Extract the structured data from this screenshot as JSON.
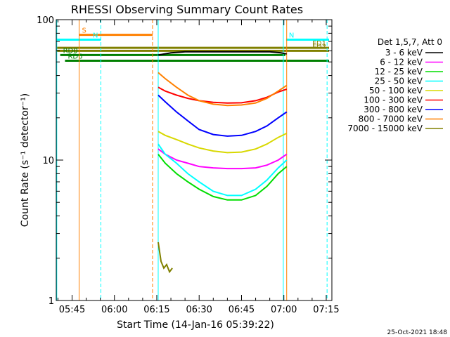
{
  "chart_data": {
    "type": "line",
    "title": "RHESSI Observing Summary Count Rates",
    "xlabel": "Start Time (14-Jan-16 05:39:22)",
    "ylabel": "Count Rate (s⁻¹ detector⁻¹)",
    "footer_timestamp": "25-Oct-2021 18:48",
    "x_unit": "minutes",
    "xlim": [
      339.4,
      437.0
    ],
    "ylim": [
      1,
      100
    ],
    "y_scale": "log",
    "x_ticks": [
      {
        "x": 345,
        "label": "05:45"
      },
      {
        "x": 360,
        "label": "06:00"
      },
      {
        "x": 375,
        "label": "06:15"
      },
      {
        "x": 390,
        "label": "06:30"
      },
      {
        "x": 405,
        "label": "06:45"
      },
      {
        "x": 420,
        "label": "07:00"
      },
      {
        "x": 435,
        "label": "07:15"
      }
    ],
    "y_ticks": [
      {
        "y": 1,
        "label": "1"
      },
      {
        "y": 10,
        "label": "10"
      },
      {
        "y": 100,
        "label": "100"
      }
    ],
    "legend": {
      "position": "right",
      "header": "Det 1,5,7, Att 0",
      "entries": [
        {
          "label": "3 - 6 keV",
          "color": "#000000"
        },
        {
          "label": "6 - 12 keV",
          "color": "#ff00ff"
        },
        {
          "label": "12 - 25 keV",
          "color": "#00dd00"
        },
        {
          "label": "25 - 50 keV",
          "color": "#00ffff"
        },
        {
          "label": "50 - 100 keV",
          "color": "#d8d800"
        },
        {
          "label": "100 - 300 keV",
          "color": "#ff0000"
        },
        {
          "label": "300 - 800 keV",
          "color": "#0000ff"
        },
        {
          "label": "800 - 7000 keV",
          "color": "#ff8000"
        },
        {
          "label": "7000 - 15000 keV",
          "color": "#808000"
        }
      ]
    },
    "flags": [
      {
        "label": "S",
        "color": "#ff8000",
        "y": 78,
        "x_start": 347.5,
        "x_end": 373.5
      },
      {
        "label": "N",
        "color": "#00ffff",
        "y": 72,
        "x_start": 339.4,
        "x_end": 355.2
      },
      {
        "label": "N",
        "color": "#00ffff",
        "y": 72,
        "x_start": 420.8,
        "x_end": 436.0
      },
      {
        "label": "FD1",
        "color": "#808000",
        "y": 63,
        "x_start": 339.4,
        "x_end": 436.0
      },
      {
        "label": "FD2",
        "color": "#808000",
        "y": 60,
        "x_start": 339.4,
        "x_end": 436.0
      },
      {
        "label": "RD0",
        "color": "#008000",
        "y": 56,
        "x_start": 340.8,
        "x_end": 420.5
      },
      {
        "label": "RD6",
        "color": "#008000",
        "y": 51,
        "x_start": 342.5,
        "x_end": 436.0
      }
    ],
    "vlines": [
      {
        "x": 339.6,
        "color": "#00ffff",
        "style": "solid"
      },
      {
        "x": 347.5,
        "color": "#ff8000",
        "style": "solid"
      },
      {
        "x": 355.2,
        "color": "#00ffff",
        "style": "dashed"
      },
      {
        "x": 373.5,
        "color": "#ff8000",
        "style": "dashed"
      },
      {
        "x": 375.5,
        "color": "#00ffff",
        "style": "solid"
      },
      {
        "x": 419.8,
        "color": "#00ffff",
        "style": "solid"
      },
      {
        "x": 421.0,
        "color": "#ff8000",
        "style": "solid"
      },
      {
        "x": 435.3,
        "color": "#00ffff",
        "style": "dashed"
      }
    ],
    "series": [
      {
        "name": "3 - 6 keV",
        "color": "#000000",
        "x": [
          375.5,
          380,
          385,
          390,
          395,
          400,
          405,
          410,
          415,
          419,
          421
        ],
        "y": [
          56,
          58,
          59,
          59,
          59,
          59,
          59,
          59,
          59,
          58,
          57
        ]
      },
      {
        "name": "6 - 12 keV",
        "color": "#ff00ff",
        "x": [
          375.5,
          378,
          382,
          386,
          390,
          395,
          400,
          405,
          410,
          414,
          418,
          421
        ],
        "y": [
          12,
          11,
          10,
          9.5,
          9,
          8.8,
          8.7,
          8.7,
          8.8,
          9.2,
          10,
          11
        ]
      },
      {
        "name": "12 - 25 keV",
        "color": "#00dd00",
        "x": [
          375.5,
          378,
          382,
          386,
          390,
          395,
          400,
          405,
          410,
          414,
          418,
          421
        ],
        "y": [
          11,
          9.5,
          8,
          7,
          6.2,
          5.5,
          5.2,
          5.2,
          5.6,
          6.5,
          8,
          9
        ]
      },
      {
        "name": "25 - 50 keV",
        "color": "#00ffff",
        "x": [
          375.5,
          378,
          382,
          386,
          390,
          395,
          400,
          405,
          410,
          414,
          418,
          421
        ],
        "y": [
          13,
          11,
          9.5,
          8,
          7,
          6,
          5.6,
          5.6,
          6.2,
          7.2,
          8.8,
          10
        ]
      },
      {
        "name": "50 - 100 keV",
        "color": "#d8d800",
        "x": [
          375.5,
          378,
          382,
          386,
          390,
          395,
          400,
          405,
          410,
          414,
          418,
          421
        ],
        "y": [
          16,
          15,
          14,
          13,
          12.2,
          11.6,
          11.3,
          11.4,
          12,
          13,
          14.5,
          15.5
        ]
      },
      {
        "name": "100 - 300 keV",
        "color": "#ff0000",
        "x": [
          375.5,
          378,
          382,
          386,
          390,
          395,
          400,
          405,
          410,
          414,
          418,
          421
        ],
        "y": [
          33,
          31,
          29,
          27.5,
          26.5,
          25.8,
          25.5,
          25.6,
          26.5,
          28,
          30.5,
          32
        ]
      },
      {
        "name": "300 - 800 keV",
        "color": "#0000ff",
        "x": [
          375.5,
          378,
          382,
          386,
          390,
          395,
          400,
          405,
          410,
          414,
          418,
          421
        ],
        "y": [
          29,
          26,
          22,
          19,
          16.5,
          15.2,
          14.8,
          15,
          16,
          17.5,
          20,
          22
        ]
      },
      {
        "name": "800 - 7000 keV",
        "color": "#ff8000",
        "x": [
          375.5,
          378,
          382,
          386,
          390,
          395,
          400,
          405,
          410,
          414,
          418,
          421
        ],
        "y": [
          42,
          38,
          33,
          29,
          26.5,
          25,
          24.5,
          24.7,
          25.5,
          27.5,
          31,
          34
        ]
      },
      {
        "name": "7000 - 15000 keV",
        "color": "#808000",
        "x": [
          375.5,
          376.5,
          377.5,
          378.5,
          379.5,
          380.5
        ],
        "y": [
          2.6,
          1.9,
          1.7,
          1.8,
          1.6,
          1.7
        ]
      }
    ]
  }
}
